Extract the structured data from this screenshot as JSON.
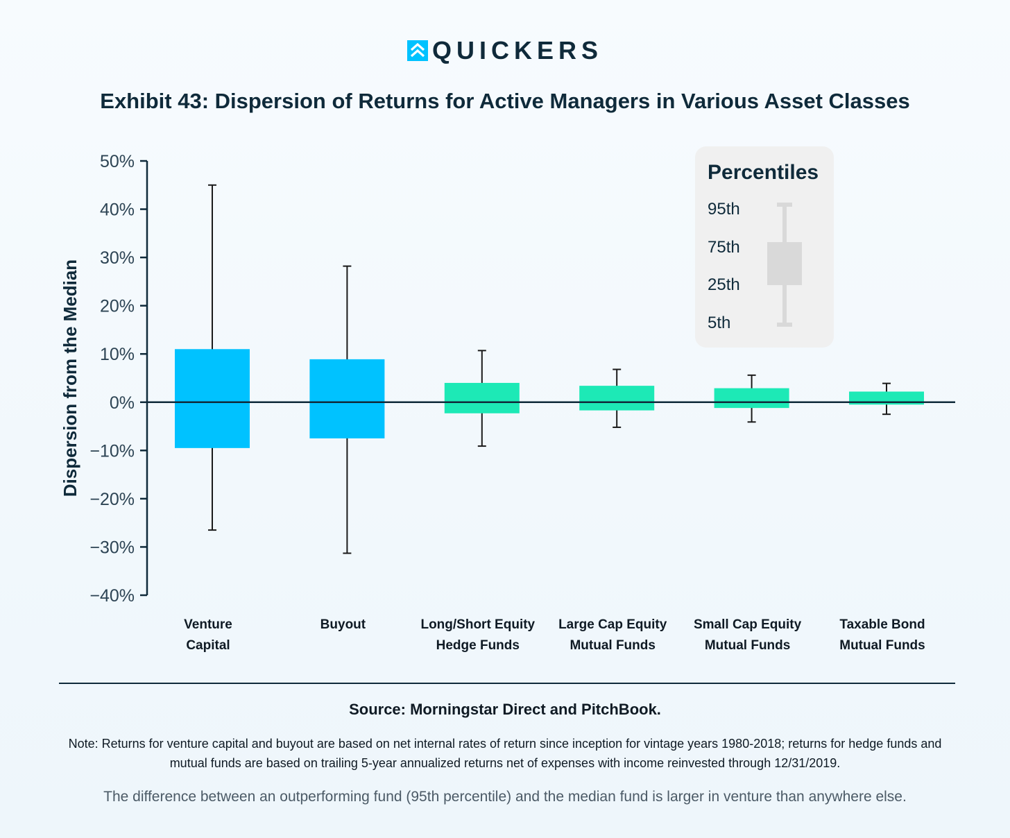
{
  "brand": {
    "name": "QUICKERS",
    "logo_icon": "quickers-chevron-logo-icon",
    "accent": "#00c2ff"
  },
  "title": "Exhibit 43: Dispersion of Returns for Active Managers in Various Asset Classes",
  "chart_data": {
    "type": "box",
    "title": "Exhibit 43: Dispersion of Returns for Active Managers in Various Asset Classes",
    "ylabel": "Dispersion from the Median",
    "xlabel": "",
    "ylim": [
      -40,
      50
    ],
    "yticks": [
      50,
      40,
      30,
      20,
      10,
      0,
      -10,
      -20,
      -30,
      -40
    ],
    "ytick_labels": [
      "50%",
      "40%",
      "30%",
      "20%",
      "10%",
      "0%",
      "−10%",
      "−20%",
      "−30%",
      "−40%"
    ],
    "categories": [
      [
        "Venture",
        "Capital"
      ],
      [
        "Buyout"
      ],
      [
        "Long/Short Equity",
        "Hedge Funds"
      ],
      [
        "Large Cap Equity",
        "Mutual Funds"
      ],
      [
        "Small Cap Equity",
        "Mutual Funds"
      ],
      [
        "Taxable Bond",
        "Mutual Funds"
      ]
    ],
    "series": [
      {
        "p95": 45.0,
        "p75": 11.0,
        "p25": -9.5,
        "p5": -26.5,
        "color": "#00c2ff"
      },
      {
        "p95": 28.2,
        "p75": 8.9,
        "p25": -7.5,
        "p5": -31.3,
        "color": "#00c2ff"
      },
      {
        "p95": 10.7,
        "p75": 4.0,
        "p25": -2.3,
        "p5": -9.1,
        "color": "#1de9b6"
      },
      {
        "p95": 6.8,
        "p75": 3.4,
        "p25": -1.7,
        "p5": -5.2,
        "color": "#1de9b6"
      },
      {
        "p95": 5.6,
        "p75": 2.9,
        "p25": -1.2,
        "p5": -4.1,
        "color": "#1de9b6"
      },
      {
        "p95": 3.9,
        "p75": 2.2,
        "p25": -0.5,
        "p5": -2.5,
        "color": "#1de9b6"
      }
    ],
    "grid": false,
    "legend": {
      "title": "Percentiles",
      "labels": [
        "95th",
        "75th",
        "25th",
        "5th"
      ],
      "placement": "top-right",
      "color": "#d9d9d9"
    }
  },
  "source": "Source: Morningstar Direct and PitchBook.",
  "note": "Note: Returns for venture capital and buyout are based on net internal rates of return since inception for vintage years 1980-2018; returns for hedge funds and mutual funds are based on trailing 5-year annualized returns net of expenses with income reinvested through 12/31/2019.",
  "caption": "The difference between an outperforming fund (95th percentile) and the median fund is larger in venture than anywhere else."
}
